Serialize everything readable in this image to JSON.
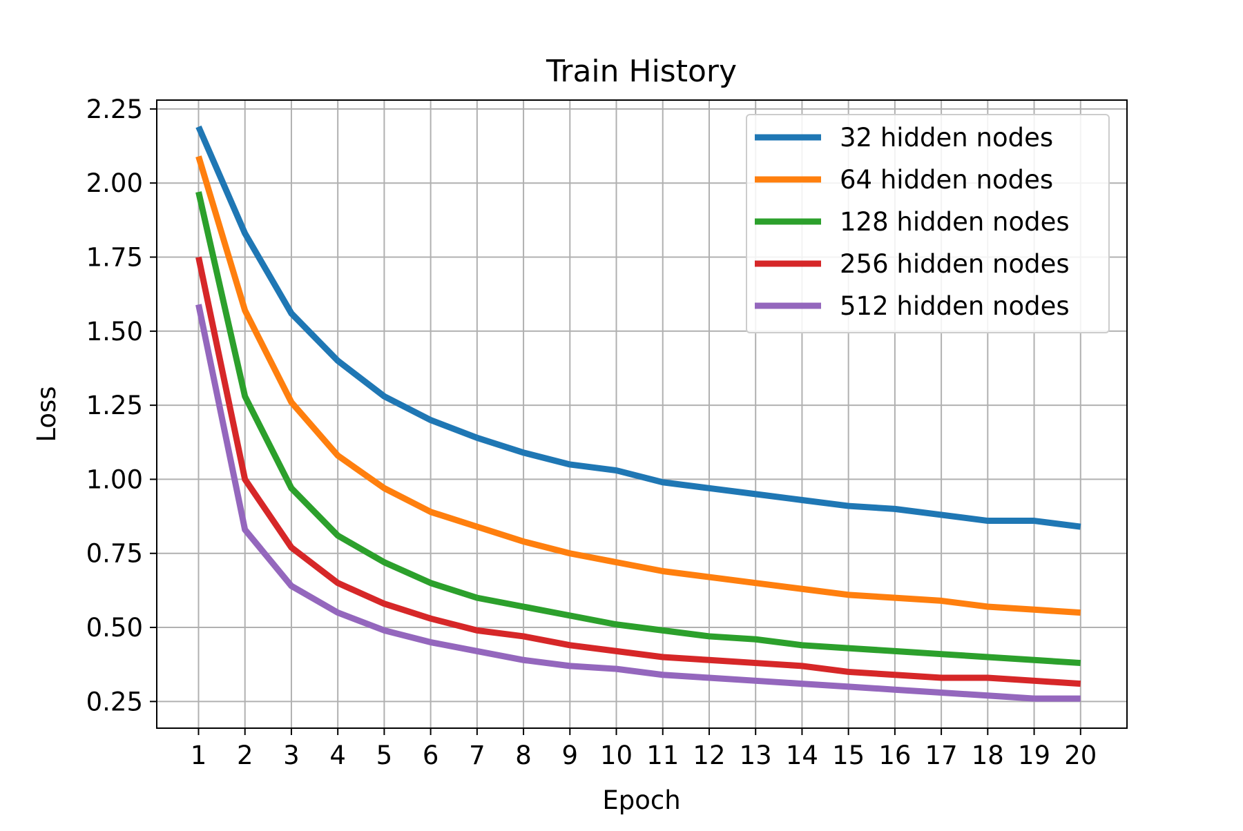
{
  "chart_data": {
    "type": "line",
    "title": "Train History",
    "xlabel": "Epoch",
    "ylabel": "Loss",
    "x": [
      1,
      2,
      3,
      4,
      5,
      6,
      7,
      8,
      9,
      10,
      11,
      12,
      13,
      14,
      15,
      16,
      17,
      18,
      19,
      20
    ],
    "xticks": [
      "1",
      "2",
      "3",
      "4",
      "5",
      "6",
      "7",
      "8",
      "9",
      "10",
      "11",
      "12",
      "13",
      "14",
      "15",
      "16",
      "17",
      "18",
      "19",
      "20"
    ],
    "yticks": [
      "0.25",
      "0.50",
      "0.75",
      "1.00",
      "1.25",
      "1.50",
      "1.75",
      "2.00",
      "2.25"
    ],
    "ytick_values": [
      0.25,
      0.5,
      0.75,
      1.0,
      1.25,
      1.5,
      1.75,
      2.0,
      2.25
    ],
    "xlim": [
      0.1,
      21.0
    ],
    "ylim": [
      0.16,
      2.28
    ],
    "grid": true,
    "legend_position": "top-right",
    "series": [
      {
        "name": "32 hidden nodes",
        "color": "#1f77b4",
        "values": [
          2.19,
          1.83,
          1.56,
          1.4,
          1.28,
          1.2,
          1.14,
          1.09,
          1.05,
          1.03,
          0.99,
          0.97,
          0.95,
          0.93,
          0.91,
          0.9,
          0.88,
          0.86,
          0.86,
          0.84
        ]
      },
      {
        "name": "64 hidden nodes",
        "color": "#ff7f0e",
        "values": [
          2.09,
          1.57,
          1.26,
          1.08,
          0.97,
          0.89,
          0.84,
          0.79,
          0.75,
          0.72,
          0.69,
          0.67,
          0.65,
          0.63,
          0.61,
          0.6,
          0.59,
          0.57,
          0.56,
          0.55
        ]
      },
      {
        "name": "128 hidden nodes",
        "color": "#2ca02c",
        "values": [
          1.97,
          1.28,
          0.97,
          0.81,
          0.72,
          0.65,
          0.6,
          0.57,
          0.54,
          0.51,
          0.49,
          0.47,
          0.46,
          0.44,
          0.43,
          0.42,
          0.41,
          0.4,
          0.39,
          0.38
        ]
      },
      {
        "name": "256 hidden nodes",
        "color": "#d62728",
        "values": [
          1.75,
          1.0,
          0.77,
          0.65,
          0.58,
          0.53,
          0.49,
          0.47,
          0.44,
          0.42,
          0.4,
          0.39,
          0.38,
          0.37,
          0.35,
          0.34,
          0.33,
          0.33,
          0.32,
          0.31
        ]
      },
      {
        "name": "512 hidden nodes",
        "color": "#9467bd",
        "values": [
          1.59,
          0.83,
          0.64,
          0.55,
          0.49,
          0.45,
          0.42,
          0.39,
          0.37,
          0.36,
          0.34,
          0.33,
          0.32,
          0.31,
          0.3,
          0.29,
          0.28,
          0.27,
          0.26,
          0.26
        ]
      }
    ]
  }
}
